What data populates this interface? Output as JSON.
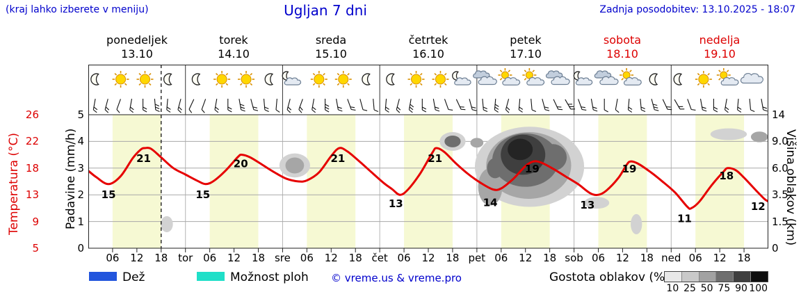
{
  "header": {
    "hint": "(kraj lahko izberete v meniju)",
    "title": "Ugljan 7 dni",
    "updated": "Zadnja posodobitev: 13.10.2025 - 18:07"
  },
  "days": [
    {
      "name": "ponedeljek",
      "date": "13.10",
      "accent": false
    },
    {
      "name": "torek",
      "date": "14.10",
      "accent": false
    },
    {
      "name": "sreda",
      "date": "15.10",
      "accent": false
    },
    {
      "name": "četrtek",
      "date": "16.10",
      "accent": false
    },
    {
      "name": "petek",
      "date": "17.10",
      "accent": false
    },
    {
      "name": "sobota",
      "date": "18.10",
      "accent": true
    },
    {
      "name": "nedelja",
      "date": "19.10",
      "accent": true
    }
  ],
  "axes": {
    "temperature": {
      "label": "Temperatura (°C)",
      "color": "#dd0000",
      "ticks": [
        "26",
        "22",
        "18",
        "13",
        "9",
        "5"
      ],
      "levels": [
        5,
        4,
        3,
        2,
        1,
        0
      ]
    },
    "precipitation": {
      "label": "Padavine (mm/h)",
      "ticks": [
        "5",
        "4",
        "3",
        "2",
        "1",
        "0"
      ],
      "levels": [
        5,
        4,
        3,
        2,
        1,
        0
      ]
    },
    "cloud_height": {
      "label": "Višina oblakov (km)",
      "ticks": [
        "14",
        "9.0",
        "6.0",
        "3.5",
        "1.5",
        "0"
      ],
      "levels": [
        5,
        4,
        3,
        2,
        1,
        0
      ]
    }
  },
  "legend": {
    "rain_label": "Dež",
    "rain_color": "#2255dd",
    "showers_label": "Možnost ploh",
    "showers_color": "#1fdfc8",
    "copyright": "© vreme.us & vreme.pro",
    "cloud_density_label": "Gostota oblakov (%)",
    "density_ticks": [
      "10",
      "25",
      "50",
      "75",
      "90",
      "100"
    ],
    "density_colors": [
      "#e8e8e8",
      "#c9c9c9",
      "#a2a2a2",
      "#6f6f6f",
      "#3f3f3f",
      "#0f0f0f"
    ]
  },
  "chart_data": {
    "type": "line",
    "title": "Ugljan 7 dni",
    "x_unit": "hours from Monday 13.10 00:00",
    "x_range": [
      0,
      168
    ],
    "day_band": {
      "start_hour": 6,
      "end_hour": 18,
      "color": "#f6f9d3"
    },
    "current_time_hour": 18,
    "temperature_color": "#e60000",
    "temp_axis_ticks": [
      5,
      9,
      13,
      18,
      22,
      26
    ],
    "precip_axis_ticks": [
      0,
      1,
      2,
      3,
      4,
      5
    ],
    "cloud_axis_ticks_km": [
      "0",
      "1.5",
      "3.5",
      "6.0",
      "9.0",
      "14"
    ],
    "temperature_series": [
      [
        0,
        17.5
      ],
      [
        2,
        16.3
      ],
      [
        5,
        15
      ],
      [
        8,
        16.5
      ],
      [
        11,
        19.5
      ],
      [
        13,
        20.8
      ],
      [
        14,
        21
      ],
      [
        15.5,
        20.9
      ],
      [
        18,
        19.6
      ],
      [
        21,
        18
      ],
      [
        24,
        16.8
      ],
      [
        27,
        15.6
      ],
      [
        29,
        15
      ],
      [
        31,
        15.6
      ],
      [
        34,
        17.6
      ],
      [
        37,
        19.7
      ],
      [
        38,
        20
      ],
      [
        40,
        19.6
      ],
      [
        43,
        18.5
      ],
      [
        46,
        17.2
      ],
      [
        49,
        16
      ],
      [
        52,
        15.5
      ],
      [
        54,
        15.7
      ],
      [
        57,
        17.2
      ],
      [
        60,
        19.8
      ],
      [
        62,
        21
      ],
      [
        64,
        20.5
      ],
      [
        67,
        19
      ],
      [
        70,
        17.2
      ],
      [
        73,
        15.2
      ],
      [
        75,
        14.1
      ],
      [
        77,
        13
      ],
      [
        79,
        14
      ],
      [
        82,
        17
      ],
      [
        85,
        20.3
      ],
      [
        86,
        21
      ],
      [
        88,
        20.4
      ],
      [
        91,
        18.6
      ],
      [
        94,
        16.8
      ],
      [
        97,
        15.2
      ],
      [
        100,
        14
      ],
      [
        102,
        14.2
      ],
      [
        105,
        16
      ],
      [
        108,
        18.3
      ],
      [
        110,
        19
      ],
      [
        112,
        18.8
      ],
      [
        115,
        17.8
      ],
      [
        118,
        16.4
      ],
      [
        121,
        15
      ],
      [
        124,
        13.3
      ],
      [
        126,
        13
      ],
      [
        128,
        13.8
      ],
      [
        131,
        16.2
      ],
      [
        133,
        18.5
      ],
      [
        134,
        19
      ],
      [
        136,
        18.6
      ],
      [
        139,
        17.2
      ],
      [
        142,
        15.4
      ],
      [
        145,
        13.4
      ],
      [
        148,
        11.2
      ],
      [
        149,
        11
      ],
      [
        151,
        12
      ],
      [
        154,
        14.8
      ],
      [
        157,
        17.4
      ],
      [
        158,
        18
      ],
      [
        160,
        17.6
      ],
      [
        162,
        16.2
      ],
      [
        165,
        13.8
      ],
      [
        167,
        12.4
      ],
      [
        168,
        12
      ]
    ],
    "temp_labels": [
      [
        5,
        15,
        "15",
        0,
        20
      ],
      [
        14,
        21,
        "21",
        -2,
        20
      ],
      [
        29,
        15,
        "15",
        -4,
        20
      ],
      [
        38,
        20,
        "20",
        -2,
        18
      ],
      [
        62,
        21,
        "21",
        -2,
        20
      ],
      [
        77,
        13,
        "13",
        -6,
        18
      ],
      [
        86,
        21,
        "21",
        -2,
        20
      ],
      [
        100,
        14,
        "14",
        -4,
        24
      ],
      [
        110,
        19,
        "19",
        -2,
        16
      ],
      [
        124,
        13,
        "13",
        -4,
        20
      ],
      [
        134,
        19,
        "19",
        -2,
        16
      ],
      [
        148,
        11,
        "11",
        -4,
        20
      ],
      [
        158,
        18,
        "18",
        -2,
        16
      ],
      [
        166.5,
        12.6,
        "12",
        -6,
        18
      ]
    ],
    "clouds": [
      [
        19.4,
        0.9,
        1.5,
        0.3,
        25
      ],
      [
        51,
        3.1,
        3.8,
        0.45,
        25
      ],
      [
        51,
        3.1,
        2.3,
        0.3,
        50
      ],
      [
        90,
        4.0,
        3.2,
        0.35,
        25
      ],
      [
        90,
        4.0,
        2.0,
        0.22,
        75
      ],
      [
        96,
        3.95,
        1.6,
        0.18,
        50
      ],
      [
        109,
        3.05,
        13.5,
        1.5,
        25
      ],
      [
        108.8,
        3.1,
        10.5,
        1.25,
        50
      ],
      [
        108,
        3.3,
        8.2,
        1.0,
        75
      ],
      [
        107.4,
        3.5,
        5.5,
        0.75,
        90
      ],
      [
        106.7,
        3.7,
        3.1,
        0.4,
        100
      ],
      [
        99.3,
        2.3,
        3.0,
        0.7,
        50
      ],
      [
        100.5,
        3.0,
        2.0,
        0.38,
        75
      ],
      [
        114.8,
        3.4,
        3.4,
        0.5,
        75
      ],
      [
        125.6,
        1.7,
        3.1,
        0.22,
        25
      ],
      [
        135.4,
        0.9,
        1.4,
        0.38,
        25
      ],
      [
        158.2,
        4.27,
        4.5,
        0.22,
        25
      ],
      [
        165.8,
        4.17,
        2.1,
        0.2,
        50
      ]
    ],
    "cloud_density_colors": {
      "10": "#ececec",
      "25": "#d2d2d2",
      "50": "#a6a6a6",
      "75": "#6e6e6e",
      "90": "#3f3f3f",
      "100": "#242424"
    },
    "icons": [
      {
        "h": 2,
        "type": "moon"
      },
      {
        "h": 8,
        "type": "sun"
      },
      {
        "h": 14,
        "type": "sun"
      },
      {
        "h": 20,
        "type": "moon"
      },
      {
        "h": 27,
        "type": "moon"
      },
      {
        "h": 33,
        "type": "sun"
      },
      {
        "h": 39,
        "type": "sun"
      },
      {
        "h": 45,
        "type": "moon"
      },
      {
        "h": 50,
        "type": "cloud-moon"
      },
      {
        "h": 57,
        "type": "sun"
      },
      {
        "h": 63,
        "type": "sun"
      },
      {
        "h": 69,
        "type": "moon"
      },
      {
        "h": 75,
        "type": "moon"
      },
      {
        "h": 81,
        "type": "sun"
      },
      {
        "h": 87,
        "type": "sun"
      },
      {
        "h": 92,
        "type": "cloud-moon"
      },
      {
        "h": 98,
        "type": "clouds"
      },
      {
        "h": 104,
        "type": "cloud-sun"
      },
      {
        "h": 110,
        "type": "cloud-sun"
      },
      {
        "h": 116,
        "type": "clouds"
      },
      {
        "h": 122,
        "type": "cloud-moon"
      },
      {
        "h": 128,
        "type": "clouds"
      },
      {
        "h": 134,
        "type": "cloud-sun"
      },
      {
        "h": 140,
        "type": "moon"
      },
      {
        "h": 146,
        "type": "moon"
      },
      {
        "h": 152,
        "type": "sun"
      },
      {
        "h": 158,
        "type": "cloud-sun"
      },
      {
        "h": 164,
        "type": "cloud"
      }
    ],
    "wind_barbs": {
      "start_hour": 1.5,
      "step_hours": 3,
      "angles": [
        100,
        105,
        110,
        100,
        90,
        85,
        95,
        105,
        115,
        110,
        100,
        90,
        80,
        75,
        85,
        95,
        105,
        110,
        100,
        90,
        80,
        70,
        75,
        85,
        95,
        105,
        100,
        90,
        80,
        70,
        65,
        75,
        85,
        95,
        105,
        95,
        85,
        75,
        65,
        60,
        70,
        80,
        90,
        100,
        95,
        85,
        75,
        65,
        60,
        70,
        80,
        90,
        100,
        95,
        85,
        80
      ],
      "ticks": [
        2,
        2,
        1,
        2,
        2,
        3,
        2,
        2,
        1,
        1,
        2,
        2,
        3,
        2,
        2,
        1,
        2,
        2,
        2,
        3,
        2,
        2,
        1,
        1,
        2,
        2,
        3,
        2,
        2,
        1,
        2,
        2,
        2,
        3,
        2,
        2,
        1,
        2,
        2,
        3,
        2,
        2,
        1,
        1,
        2,
        2,
        3,
        2,
        2,
        1,
        2,
        2,
        2,
        2,
        1,
        2
      ]
    },
    "x_ticks": [
      {
        "h": 6,
        "label": "06"
      },
      {
        "h": 12,
        "label": "12"
      },
      {
        "h": 18,
        "label": "18"
      },
      {
        "h": 24,
        "label": "tor"
      },
      {
        "h": 30,
        "label": "06"
      },
      {
        "h": 36,
        "label": "12"
      },
      {
        "h": 42,
        "label": "18"
      },
      {
        "h": 48,
        "label": "sre"
      },
      {
        "h": 54,
        "label": "06"
      },
      {
        "h": 60,
        "label": "12"
      },
      {
        "h": 66,
        "label": "18"
      },
      {
        "h": 72,
        "label": "čet"
      },
      {
        "h": 78,
        "label": "06"
      },
      {
        "h": 84,
        "label": "12"
      },
      {
        "h": 90,
        "label": "18"
      },
      {
        "h": 96,
        "label": "pet"
      },
      {
        "h": 102,
        "label": "06"
      },
      {
        "h": 108,
        "label": "12"
      },
      {
        "h": 114,
        "label": "18"
      },
      {
        "h": 120,
        "label": "sob"
      },
      {
        "h": 126,
        "label": "06"
      },
      {
        "h": 132,
        "label": "12"
      },
      {
        "h": 138,
        "label": "18"
      },
      {
        "h": 144,
        "label": "ned"
      },
      {
        "h": 150,
        "label": "06"
      },
      {
        "h": 156,
        "label": "12"
      },
      {
        "h": 162,
        "label": "18"
      }
    ]
  }
}
